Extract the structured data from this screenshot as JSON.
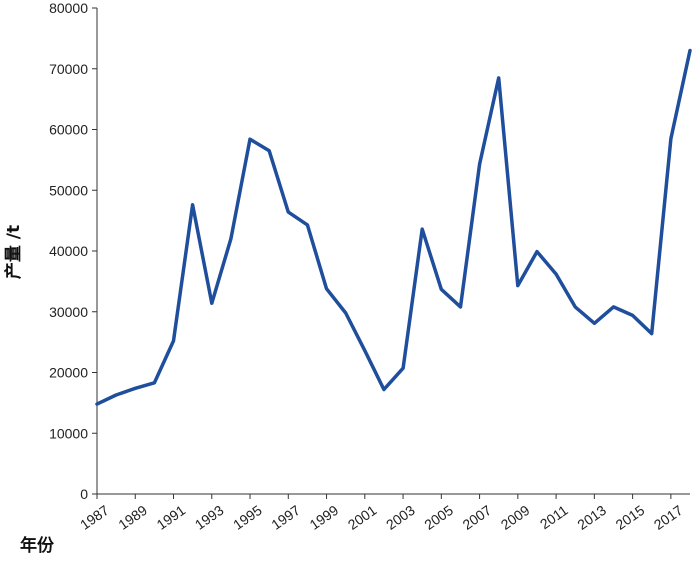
{
  "chart_data": {
    "type": "line",
    "xlabel": "年份",
    "ylabel": "产量 /t",
    "ylim": [
      0,
      80000
    ],
    "yticks": [
      "0",
      "10000",
      "20000",
      "30000",
      "40000",
      "50000",
      "60000",
      "70000",
      "80000"
    ],
    "xticks": [
      "1987",
      "1989",
      "1991",
      "1993",
      "1995",
      "1997",
      "1999",
      "2001",
      "2003",
      "2005",
      "2007",
      "2009",
      "2011",
      "2013",
      "2015",
      "2017"
    ],
    "grid": false,
    "line_color": "#1f4e9c",
    "x": [
      1987,
      1988,
      1989,
      1990,
      1991,
      1992,
      1993,
      1994,
      1995,
      1996,
      1997,
      1998,
      1999,
      2000,
      2001,
      2002,
      2003,
      2004,
      2005,
      2006,
      2007,
      2008,
      2009,
      2010,
      2011,
      2012,
      2013,
      2014,
      2015,
      2016,
      2017,
      2018
    ],
    "series": [
      {
        "values": [
          14800,
          16300,
          17400,
          18300,
          25200,
          47600,
          31400,
          42000,
          58400,
          56500,
          46400,
          44300,
          33800,
          29800,
          23600,
          17200,
          20700,
          43600,
          33700,
          30800,
          54300,
          68500,
          34300,
          39900,
          36200,
          30800,
          28100,
          30800,
          29400,
          26400,
          58500,
          73000
        ]
      }
    ]
  }
}
